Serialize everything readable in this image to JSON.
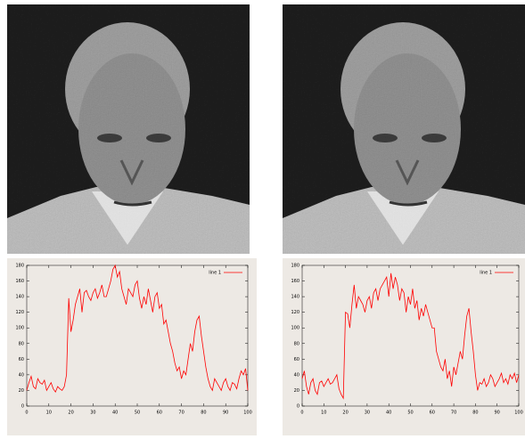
{
  "chart_data": [
    {
      "type": "line",
      "x": [
        0,
        1,
        2,
        3,
        4,
        5,
        6,
        7,
        8,
        9,
        10,
        11,
        12,
        13,
        14,
        15,
        16,
        17,
        18,
        19,
        20,
        21,
        22,
        23,
        24,
        25,
        26,
        27,
        28,
        29,
        30,
        31,
        32,
        33,
        34,
        35,
        36,
        37,
        38,
        39,
        40,
        41,
        42,
        43,
        44,
        45,
        46,
        47,
        48,
        49,
        50,
        51,
        52,
        53,
        54,
        55,
        56,
        57,
        58,
        59,
        60,
        61,
        62,
        63,
        64,
        65,
        66,
        67,
        68,
        69,
        70,
        71,
        72,
        73,
        74,
        75,
        76,
        77,
        78,
        79,
        80,
        81,
        82,
        83,
        84,
        85,
        86,
        87,
        88,
        89,
        90,
        91,
        92,
        93,
        94,
        95,
        96,
        97,
        98,
        99,
        100
      ],
      "series": [
        {
          "name": "line 1",
          "color": "#ff0000",
          "values": [
            20,
            30,
            38,
            25,
            22,
            35,
            30,
            28,
            33,
            20,
            25,
            30,
            22,
            18,
            25,
            22,
            20,
            25,
            40,
            138,
            95,
            110,
            130,
            140,
            150,
            120,
            145,
            148,
            140,
            135,
            145,
            150,
            138,
            145,
            155,
            140,
            140,
            150,
            160,
            175,
            180,
            165,
            172,
            150,
            140,
            130,
            150,
            145,
            140,
            155,
            160,
            138,
            125,
            140,
            130,
            150,
            135,
            120,
            140,
            145,
            125,
            130,
            105,
            110,
            95,
            80,
            70,
            55,
            45,
            50,
            35,
            45,
            40,
            60,
            80,
            70,
            95,
            110,
            115,
            90,
            70,
            50,
            35,
            25,
            20,
            35,
            30,
            25,
            20,
            30,
            35,
            25,
            20,
            30,
            28,
            22,
            35,
            45,
            40,
            48,
            20
          ]
        }
      ],
      "xlim": [
        0,
        100
      ],
      "ylim": [
        0,
        180
      ],
      "xticks": [
        0,
        10,
        20,
        30,
        40,
        50,
        60,
        70,
        80,
        90,
        100
      ],
      "yticks": [
        0,
        20,
        40,
        60,
        80,
        100,
        120,
        140,
        160,
        180
      ]
    },
    {
      "type": "line",
      "x": [
        0,
        1,
        2,
        3,
        4,
        5,
        6,
        7,
        8,
        9,
        10,
        11,
        12,
        13,
        14,
        15,
        16,
        17,
        18,
        19,
        20,
        21,
        22,
        23,
        24,
        25,
        26,
        27,
        28,
        29,
        30,
        31,
        32,
        33,
        34,
        35,
        36,
        37,
        38,
        39,
        40,
        41,
        42,
        43,
        44,
        45,
        46,
        47,
        48,
        49,
        50,
        51,
        52,
        53,
        54,
        55,
        56,
        57,
        58,
        59,
        60,
        61,
        62,
        63,
        64,
        65,
        66,
        67,
        68,
        69,
        70,
        71,
        72,
        73,
        74,
        75,
        76,
        77,
        78,
        79,
        80,
        81,
        82,
        83,
        84,
        85,
        86,
        87,
        88,
        89,
        90,
        91,
        92,
        93,
        94,
        95,
        96,
        97,
        98,
        99,
        100
      ],
      "series": [
        {
          "name": "line 1",
          "color": "#ff0000",
          "values": [
            35,
            45,
            25,
            15,
            30,
            35,
            20,
            15,
            30,
            32,
            25,
            30,
            35,
            28,
            30,
            35,
            40,
            22,
            15,
            10,
            120,
            118,
            100,
            130,
            155,
            125,
            140,
            135,
            130,
            120,
            135,
            140,
            125,
            145,
            150,
            135,
            150,
            155,
            160,
            165,
            140,
            170,
            150,
            165,
            155,
            135,
            150,
            145,
            120,
            140,
            130,
            150,
            125,
            135,
            110,
            125,
            115,
            130,
            120,
            110,
            100,
            100,
            70,
            60,
            50,
            45,
            60,
            35,
            45,
            25,
            50,
            40,
            55,
            70,
            60,
            90,
            115,
            125,
            95,
            70,
            40,
            20,
            30,
            28,
            35,
            25,
            30,
            40,
            35,
            25,
            30,
            35,
            42,
            30,
            35,
            28,
            40,
            35,
            42,
            30,
            40
          ]
        }
      ],
      "xlim": [
        0,
        100
      ],
      "ylim": [
        0,
        180
      ],
      "xticks": [
        0,
        10,
        20,
        30,
        40,
        50,
        60,
        70,
        80,
        90,
        100
      ],
      "yticks": [
        0,
        20,
        40,
        60,
        80,
        100,
        120,
        140,
        160,
        180
      ]
    }
  ]
}
